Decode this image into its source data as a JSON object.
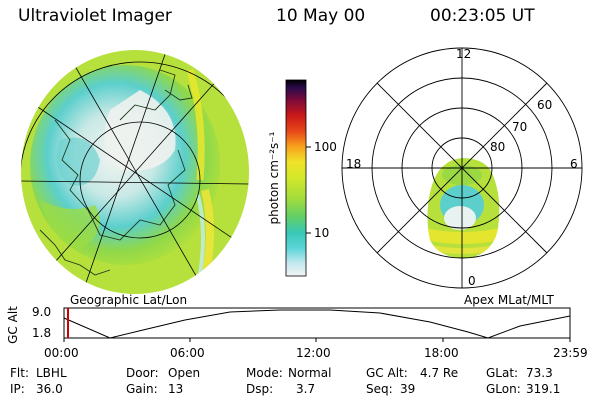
{
  "header": {
    "instrument": "Ultraviolet Imager",
    "date": "10 May 00",
    "time": "00:23:05 UT"
  },
  "left_panel": {
    "caption": "Geographic Lat/Lon"
  },
  "right_panel": {
    "caption": "Apex MLat/MLT",
    "mlt_labels": [
      "12",
      "18",
      "6",
      "0"
    ],
    "lat_labels": [
      "60",
      "70",
      "80"
    ]
  },
  "colorbar": {
    "label": "photon cm⁻²s⁻¹",
    "ticks": [
      "100",
      "10"
    ],
    "colors": [
      "#f4f4f4",
      "#bfe8ee",
      "#5fd5d8",
      "#38c8b8",
      "#60cf68",
      "#a6dc3a",
      "#d2e82a",
      "#efe32a",
      "#f8a21c",
      "#e6461a",
      "#c81818",
      "#7a0a3a",
      "#2a0a4a",
      "#000000"
    ]
  },
  "altitude_plot": {
    "ylabel": "GC Alt",
    "yticks": [
      "9.0",
      "1.8"
    ],
    "xticks": [
      "00:00",
      "06:00",
      "12:00",
      "18:00",
      "23:59"
    ],
    "marker_color": "#d00000"
  },
  "info": {
    "flt_label": "Flt:",
    "flt_value": "LBHL",
    "door_label": "Door:",
    "door_value": "Open",
    "mode_label": "Mode:",
    "mode_value": "Normal",
    "gcalt_label": "GC Alt:",
    "gcalt_value": "4.7 Re",
    "glat_label": "GLat:",
    "glat_value": "73.3",
    "ip_label": "IP:",
    "ip_value": "36.0",
    "gain_label": "Gain:",
    "gain_value": "13",
    "dsp_label": "Dsp:",
    "dsp_value": "3.7",
    "seq_label": "Seq:",
    "seq_value": "39",
    "glon_label": "GLon:",
    "glon_value": "319.1"
  }
}
